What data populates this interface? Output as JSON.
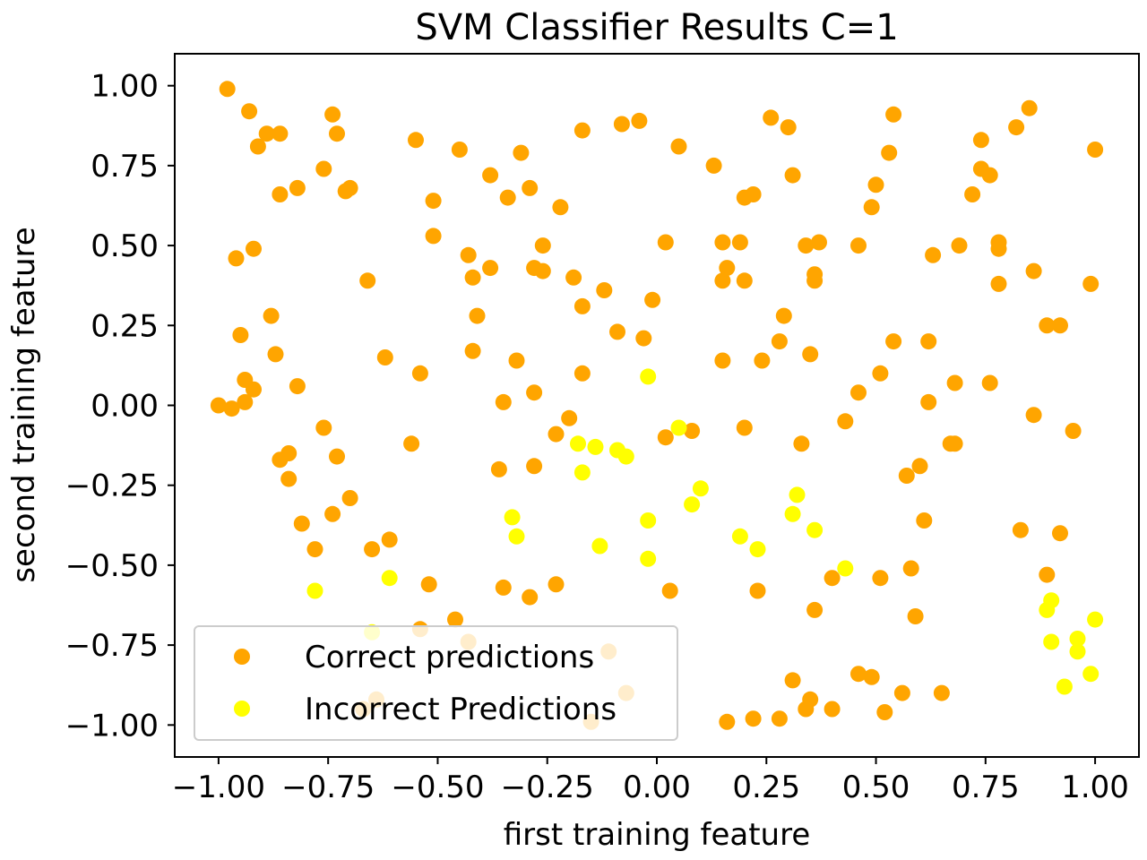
{
  "chart_data": {
    "type": "scatter",
    "title": "SVM Classifier Results C=1",
    "xlabel": "first training feature",
    "ylabel": "second training feature",
    "xlim": [
      -1.1,
      1.1
    ],
    "ylim": [
      -1.1,
      1.1
    ],
    "xticks": [
      -1.0,
      -0.75,
      -0.5,
      -0.25,
      0.0,
      0.25,
      0.5,
      0.75,
      1.0
    ],
    "xtick_labels": [
      "−1.00",
      "−0.75",
      "−0.50",
      "−0.25",
      "0.00",
      "0.25",
      "0.50",
      "0.75",
      "1.00"
    ],
    "yticks": [
      1.0,
      0.75,
      0.5,
      0.25,
      0.0,
      -0.25,
      -0.5,
      -0.75,
      -1.0
    ],
    "ytick_labels": [
      "1.00",
      "0.75",
      "0.50",
      "0.25",
      "0.00",
      "−0.25",
      "−0.50",
      "−0.75",
      "−1.00"
    ],
    "grid": false,
    "legend_position": "lower-left",
    "series": [
      {
        "name": "Correct predictions",
        "color": "#ffa500",
        "points": [
          [
            -0.98,
            0.99
          ],
          [
            -0.93,
            0.92
          ],
          [
            -0.74,
            0.91
          ],
          [
            -0.89,
            0.85
          ],
          [
            -0.86,
            0.85
          ],
          [
            -0.71,
            0.67
          ],
          [
            -0.73,
            0.85
          ],
          [
            -0.91,
            0.81
          ],
          [
            -0.76,
            0.74
          ],
          [
            -0.86,
            0.66
          ],
          [
            -0.82,
            0.68
          ],
          [
            -0.7,
            0.68
          ],
          [
            -0.55,
            0.83
          ],
          [
            -0.45,
            0.8
          ],
          [
            -0.38,
            0.72
          ],
          [
            -0.31,
            0.79
          ],
          [
            -0.29,
            0.68
          ],
          [
            -0.34,
            0.65
          ],
          [
            -0.51,
            0.64
          ],
          [
            -0.51,
            0.53
          ],
          [
            -0.43,
            0.47
          ],
          [
            -0.42,
            0.4
          ],
          [
            -0.38,
            0.43
          ],
          [
            -0.26,
            0.5
          ],
          [
            -0.28,
            0.43
          ],
          [
            -0.26,
            0.42
          ],
          [
            -0.96,
            0.46
          ],
          [
            -0.92,
            0.49
          ],
          [
            -0.66,
            0.39
          ],
          [
            -0.88,
            0.28
          ],
          [
            -0.95,
            0.22
          ],
          [
            -0.41,
            0.28
          ],
          [
            -0.42,
            0.17
          ],
          [
            -0.32,
            0.14
          ],
          [
            -0.54,
            0.1
          ],
          [
            -0.62,
            0.15
          ],
          [
            -0.94,
            0.08
          ],
          [
            -0.92,
            0.05
          ],
          [
            -0.87,
            0.16
          ],
          [
            -0.82,
            0.06
          ],
          [
            -1.0,
            0.0
          ],
          [
            -0.97,
            -0.01
          ],
          [
            -0.94,
            0.01
          ],
          [
            -0.35,
            0.01
          ],
          [
            -0.28,
            0.04
          ],
          [
            -0.76,
            -0.07
          ],
          [
            -0.56,
            -0.12
          ],
          [
            -0.84,
            -0.15
          ],
          [
            -0.86,
            -0.17
          ],
          [
            -0.73,
            -0.16
          ],
          [
            -0.84,
            -0.23
          ],
          [
            -0.36,
            -0.2
          ],
          [
            -0.28,
            -0.19
          ],
          [
            -0.2,
            -0.04
          ],
          [
            -0.23,
            -0.09
          ],
          [
            -0.81,
            -0.37
          ],
          [
            -0.78,
            -0.45
          ],
          [
            -0.74,
            -0.34
          ],
          [
            -0.7,
            -0.29
          ],
          [
            -0.65,
            -0.45
          ],
          [
            -0.61,
            -0.42
          ],
          [
            -0.52,
            -0.56
          ],
          [
            -0.35,
            -0.57
          ],
          [
            -0.29,
            -0.6
          ],
          [
            -0.23,
            -0.56
          ],
          [
            -0.54,
            -0.7
          ],
          [
            -0.46,
            -0.67
          ],
          [
            -0.43,
            -0.74
          ],
          [
            -0.11,
            -0.77
          ],
          [
            -0.67,
            -0.95
          ],
          [
            -0.64,
            -0.92
          ],
          [
            -0.15,
            -0.99
          ],
          [
            -0.07,
            -0.9
          ],
          [
            -0.17,
            0.86
          ],
          [
            -0.08,
            0.88
          ],
          [
            -0.04,
            0.89
          ],
          [
            0.05,
            0.81
          ],
          [
            -0.22,
            0.62
          ],
          [
            -0.19,
            0.4
          ],
          [
            -0.17,
            0.31
          ],
          [
            -0.12,
            0.36
          ],
          [
            -0.01,
            0.33
          ],
          [
            -0.09,
            0.23
          ],
          [
            -0.03,
            0.21
          ],
          [
            -0.17,
            0.1
          ],
          [
            0.02,
            0.51
          ],
          [
            0.13,
            0.75
          ],
          [
            0.2,
            0.65
          ],
          [
            0.22,
            0.66
          ],
          [
            0.26,
            0.9
          ],
          [
            0.3,
            0.87
          ],
          [
            0.31,
            0.72
          ],
          [
            0.15,
            0.51
          ],
          [
            0.19,
            0.51
          ],
          [
            0.16,
            0.43
          ],
          [
            0.15,
            0.39
          ],
          [
            0.2,
            0.39
          ],
          [
            0.34,
            0.5
          ],
          [
            0.37,
            0.51
          ],
          [
            0.36,
            0.41
          ],
          [
            0.36,
            0.39
          ],
          [
            0.29,
            0.28
          ],
          [
            0.28,
            0.2
          ],
          [
            0.24,
            0.14
          ],
          [
            0.15,
            0.14
          ],
          [
            0.35,
            0.16
          ],
          [
            0.02,
            -0.1
          ],
          [
            0.08,
            -0.08
          ],
          [
            0.2,
            -0.07
          ],
          [
            0.33,
            -0.12
          ],
          [
            0.03,
            -0.58
          ],
          [
            0.23,
            -0.58
          ],
          [
            0.31,
            -0.86
          ],
          [
            0.35,
            -0.92
          ],
          [
            0.34,
            -0.95
          ],
          [
            0.4,
            -0.95
          ],
          [
            0.16,
            -0.99
          ],
          [
            0.22,
            -0.98
          ],
          [
            0.28,
            -0.98
          ],
          [
            0.36,
            -0.64
          ],
          [
            0.54,
            0.91
          ],
          [
            0.53,
            0.79
          ],
          [
            0.5,
            0.69
          ],
          [
            0.49,
            0.62
          ],
          [
            0.46,
            0.5
          ],
          [
            0.63,
            0.47
          ],
          [
            0.69,
            0.5
          ],
          [
            0.54,
            0.2
          ],
          [
            0.62,
            0.2
          ],
          [
            0.51,
            0.1
          ],
          [
            0.46,
            0.04
          ],
          [
            0.43,
            -0.05
          ],
          [
            0.62,
            0.01
          ],
          [
            0.68,
            0.07
          ],
          [
            0.57,
            -0.22
          ],
          [
            0.6,
            -0.19
          ],
          [
            0.67,
            -0.12
          ],
          [
            0.68,
            -0.12
          ],
          [
            0.61,
            -0.36
          ],
          [
            0.58,
            -0.51
          ],
          [
            0.51,
            -0.54
          ],
          [
            0.4,
            -0.54
          ],
          [
            0.59,
            -0.66
          ],
          [
            0.46,
            -0.84
          ],
          [
            0.49,
            -0.85
          ],
          [
            0.56,
            -0.9
          ],
          [
            0.65,
            -0.9
          ],
          [
            0.52,
            -0.96
          ],
          [
            0.85,
            0.93
          ],
          [
            0.82,
            0.87
          ],
          [
            0.74,
            0.83
          ],
          [
            0.74,
            0.74
          ],
          [
            0.76,
            0.72
          ],
          [
            0.72,
            0.66
          ],
          [
            0.78,
            0.51
          ],
          [
            0.78,
            0.49
          ],
          [
            0.86,
            0.42
          ],
          [
            0.78,
            0.38
          ],
          [
            0.99,
            0.38
          ],
          [
            1.0,
            0.8
          ],
          [
            0.89,
            0.25
          ],
          [
            0.92,
            0.25
          ],
          [
            0.76,
            0.07
          ],
          [
            0.86,
            -0.03
          ],
          [
            0.95,
            -0.08
          ],
          [
            0.83,
            -0.39
          ],
          [
            0.92,
            -0.4
          ],
          [
            0.89,
            -0.53
          ]
        ]
      },
      {
        "name": "Incorrect Predictions",
        "color": "#ffff00",
        "points": [
          [
            -0.78,
            -0.58
          ],
          [
            -0.61,
            -0.54
          ],
          [
            -0.65,
            -0.71
          ],
          [
            -0.33,
            -0.35
          ],
          [
            -0.32,
            -0.41
          ],
          [
            -0.18,
            -0.12
          ],
          [
            -0.14,
            -0.13
          ],
          [
            -0.17,
            -0.21
          ],
          [
            -0.09,
            -0.14
          ],
          [
            -0.07,
            -0.16
          ],
          [
            -0.13,
            -0.44
          ],
          [
            -0.02,
            -0.36
          ],
          [
            -0.02,
            -0.48
          ],
          [
            -0.02,
            0.09
          ],
          [
            0.05,
            -0.07
          ],
          [
            0.1,
            -0.26
          ],
          [
            0.08,
            -0.31
          ],
          [
            0.19,
            -0.41
          ],
          [
            0.23,
            -0.45
          ],
          [
            0.32,
            -0.28
          ],
          [
            0.31,
            -0.34
          ],
          [
            0.36,
            -0.39
          ],
          [
            0.43,
            -0.51
          ],
          [
            0.9,
            -0.61
          ],
          [
            0.89,
            -0.64
          ],
          [
            0.9,
            -0.74
          ],
          [
            0.96,
            -0.73
          ],
          [
            0.96,
            -0.77
          ],
          [
            1.0,
            -0.67
          ],
          [
            0.93,
            -0.88
          ],
          [
            0.99,
            -0.84
          ]
        ]
      }
    ]
  }
}
